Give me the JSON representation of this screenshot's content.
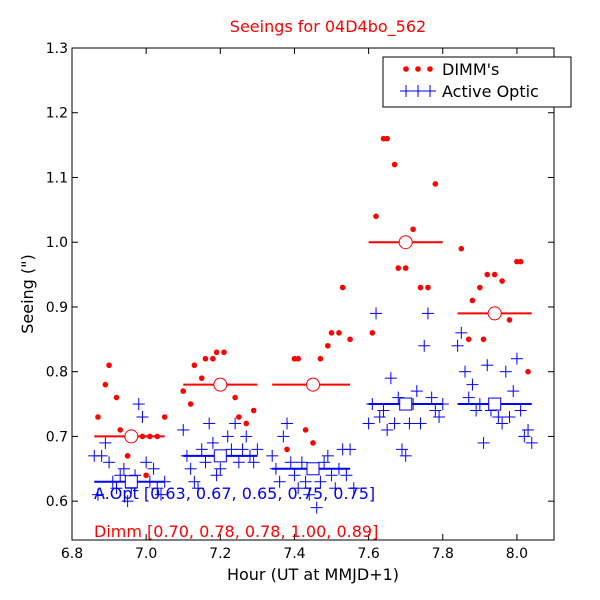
{
  "chart_data": {
    "type": "scatter",
    "title": "Seeings for 04D4bo_562",
    "xlabel": "Hour (UT at MMJD+1)",
    "ylabel": "Seeing (\")",
    "xlim": [
      6.8,
      8.1
    ],
    "ylim": [
      0.54,
      1.3
    ],
    "x_ticks": [
      "6.8",
      "7.0",
      "7.2",
      "7.4",
      "7.6",
      "7.8",
      "8.0"
    ],
    "y_ticks": [
      "0.6",
      "0.7",
      "0.8",
      "0.9",
      "1.0",
      "1.1",
      "1.2",
      "1.3"
    ],
    "grid": false,
    "legend_position": "top-right",
    "legend": {
      "dimm_label": "DIMM's",
      "ao_label": "Active Optic"
    },
    "colors": {
      "dimm": "#ff0000",
      "ao": "#0000ff",
      "title": "#ff0000"
    },
    "annotations": {
      "aopt_text": "A.Opt [0.63, 0.67, 0.65, 0.75, 0.75]",
      "dimm_text": "Dimm [0.70, 0.78, 0.78, 1.00, 0.89]"
    },
    "dimm_points": [
      [
        6.87,
        0.73
      ],
      [
        6.89,
        0.78
      ],
      [
        6.9,
        0.81
      ],
      [
        6.92,
        0.76
      ],
      [
        6.93,
        0.71
      ],
      [
        6.95,
        0.67
      ],
      [
        6.97,
        0.7
      ],
      [
        6.99,
        0.7
      ],
      [
        7.0,
        0.64
      ],
      [
        7.01,
        0.7
      ],
      [
        7.03,
        0.7
      ],
      [
        7.05,
        0.73
      ],
      [
        7.1,
        0.77
      ],
      [
        7.12,
        0.75
      ],
      [
        7.13,
        0.81
      ],
      [
        7.15,
        0.79
      ],
      [
        7.16,
        0.82
      ],
      [
        7.18,
        0.82
      ],
      [
        7.19,
        0.83
      ],
      [
        7.21,
        0.83
      ],
      [
        7.24,
        0.76
      ],
      [
        7.25,
        0.73
      ],
      [
        7.27,
        0.72
      ],
      [
        7.29,
        0.74
      ],
      [
        7.38,
        0.68
      ],
      [
        7.4,
        0.82
      ],
      [
        7.41,
        0.82
      ],
      [
        7.43,
        0.71
      ],
      [
        7.45,
        0.69
      ],
      [
        7.47,
        0.82
      ],
      [
        7.49,
        0.84
      ],
      [
        7.5,
        0.86
      ],
      [
        7.52,
        0.86
      ],
      [
        7.53,
        0.93
      ],
      [
        7.55,
        0.85
      ],
      [
        7.61,
        0.86
      ],
      [
        7.62,
        1.04
      ],
      [
        7.64,
        1.16
      ],
      [
        7.65,
        1.16
      ],
      [
        7.67,
        1.12
      ],
      [
        7.68,
        0.96
      ],
      [
        7.7,
        0.96
      ],
      [
        7.72,
        1.02
      ],
      [
        7.74,
        0.93
      ],
      [
        7.76,
        0.93
      ],
      [
        7.78,
        1.09
      ],
      [
        7.85,
        0.99
      ],
      [
        7.87,
        0.85
      ],
      [
        7.88,
        0.91
      ],
      [
        7.9,
        0.93
      ],
      [
        7.91,
        0.85
      ],
      [
        7.92,
        0.95
      ],
      [
        7.94,
        0.95
      ],
      [
        7.96,
        0.94
      ],
      [
        7.98,
        0.88
      ],
      [
        8.0,
        0.97
      ],
      [
        8.01,
        0.97
      ],
      [
        8.03,
        0.8
      ]
    ],
    "ao_points": [
      [
        6.86,
        0.67
      ],
      [
        6.87,
        0.61
      ],
      [
        6.88,
        0.67
      ],
      [
        6.89,
        0.69
      ],
      [
        6.9,
        0.66
      ],
      [
        6.91,
        0.63
      ],
      [
        6.92,
        0.62
      ],
      [
        6.93,
        0.64
      ],
      [
        6.94,
        0.65
      ],
      [
        6.95,
        0.6
      ],
      [
        6.96,
        0.62
      ],
      [
        6.97,
        0.64
      ],
      [
        6.98,
        0.75
      ],
      [
        6.99,
        0.73
      ],
      [
        7.0,
        0.66
      ],
      [
        7.01,
        0.63
      ],
      [
        7.02,
        0.65
      ],
      [
        7.03,
        0.62
      ],
      [
        7.04,
        0.61
      ],
      [
        7.05,
        0.63
      ],
      [
        7.1,
        0.71
      ],
      [
        7.11,
        0.67
      ],
      [
        7.12,
        0.65
      ],
      [
        7.13,
        0.63
      ],
      [
        7.14,
        0.62
      ],
      [
        7.15,
        0.68
      ],
      [
        7.16,
        0.66
      ],
      [
        7.17,
        0.72
      ],
      [
        7.18,
        0.69
      ],
      [
        7.19,
        0.64
      ],
      [
        7.2,
        0.65
      ],
      [
        7.21,
        0.67
      ],
      [
        7.22,
        0.7
      ],
      [
        7.23,
        0.68
      ],
      [
        7.24,
        0.72
      ],
      [
        7.25,
        0.66
      ],
      [
        7.26,
        0.68
      ],
      [
        7.27,
        0.7
      ],
      [
        7.28,
        0.67
      ],
      [
        7.29,
        0.66
      ],
      [
        7.3,
        0.68
      ],
      [
        7.34,
        0.67
      ],
      [
        7.35,
        0.65
      ],
      [
        7.36,
        0.63
      ],
      [
        7.37,
        0.7
      ],
      [
        7.38,
        0.72
      ],
      [
        7.39,
        0.66
      ],
      [
        7.4,
        0.64
      ],
      [
        7.41,
        0.62
      ],
      [
        7.42,
        0.66
      ],
      [
        7.43,
        0.63
      ],
      [
        7.44,
        0.61
      ],
      [
        7.45,
        0.65
      ],
      [
        7.46,
        0.59
      ],
      [
        7.47,
        0.63
      ],
      [
        7.48,
        0.66
      ],
      [
        7.49,
        0.67
      ],
      [
        7.5,
        0.64
      ],
      [
        7.51,
        0.62
      ],
      [
        7.52,
        0.65
      ],
      [
        7.53,
        0.68
      ],
      [
        7.54,
        0.64
      ],
      [
        7.55,
        0.68
      ],
      [
        7.56,
        0.62
      ],
      [
        7.6,
        0.72
      ],
      [
        7.61,
        0.75
      ],
      [
        7.62,
        0.89
      ],
      [
        7.63,
        0.73
      ],
      [
        7.64,
        0.74
      ],
      [
        7.65,
        0.71
      ],
      [
        7.66,
        0.79
      ],
      [
        7.67,
        0.72
      ],
      [
        7.68,
        0.76
      ],
      [
        7.69,
        0.68
      ],
      [
        7.7,
        0.67
      ],
      [
        7.71,
        0.72
      ],
      [
        7.72,
        0.75
      ],
      [
        7.73,
        0.77
      ],
      [
        7.74,
        0.72
      ],
      [
        7.75,
        0.84
      ],
      [
        7.76,
        0.89
      ],
      [
        7.77,
        0.76
      ],
      [
        7.78,
        0.74
      ],
      [
        7.79,
        0.73
      ],
      [
        7.8,
        0.75
      ],
      [
        7.84,
        0.84
      ],
      [
        7.85,
        0.86
      ],
      [
        7.86,
        0.8
      ],
      [
        7.87,
        0.76
      ],
      [
        7.88,
        0.78
      ],
      [
        7.89,
        0.74
      ],
      [
        7.9,
        0.75
      ],
      [
        7.91,
        0.69
      ],
      [
        7.92,
        0.81
      ],
      [
        7.93,
        0.74
      ],
      [
        7.94,
        0.75
      ],
      [
        7.95,
        0.73
      ],
      [
        7.96,
        0.72
      ],
      [
        7.97,
        0.8
      ],
      [
        7.98,
        0.73
      ],
      [
        7.99,
        0.77
      ],
      [
        8.0,
        0.82
      ],
      [
        8.01,
        0.74
      ],
      [
        8.02,
        0.7
      ],
      [
        8.03,
        0.71
      ],
      [
        8.04,
        0.69
      ]
    ],
    "dimm_means": [
      {
        "x": 6.96,
        "y": 0.7,
        "x0": 6.86,
        "x1": 7.05
      },
      {
        "x": 7.2,
        "y": 0.78,
        "x0": 7.1,
        "x1": 7.3
      },
      {
        "x": 7.45,
        "y": 0.78,
        "x0": 7.34,
        "x1": 7.55
      },
      {
        "x": 7.7,
        "y": 1.0,
        "x0": 7.6,
        "x1": 7.8
      },
      {
        "x": 7.94,
        "y": 0.89,
        "x0": 7.84,
        "x1": 8.04
      }
    ],
    "ao_means": [
      {
        "x": 6.96,
        "y": 0.63,
        "x0": 6.86,
        "x1": 7.05
      },
      {
        "x": 7.2,
        "y": 0.67,
        "x0": 7.1,
        "x1": 7.3
      },
      {
        "x": 7.45,
        "y": 0.65,
        "x0": 7.34,
        "x1": 7.55
      },
      {
        "x": 7.7,
        "y": 0.75,
        "x0": 7.6,
        "x1": 7.8
      },
      {
        "x": 7.94,
        "y": 0.75,
        "x0": 7.84,
        "x1": 8.04
      }
    ]
  }
}
